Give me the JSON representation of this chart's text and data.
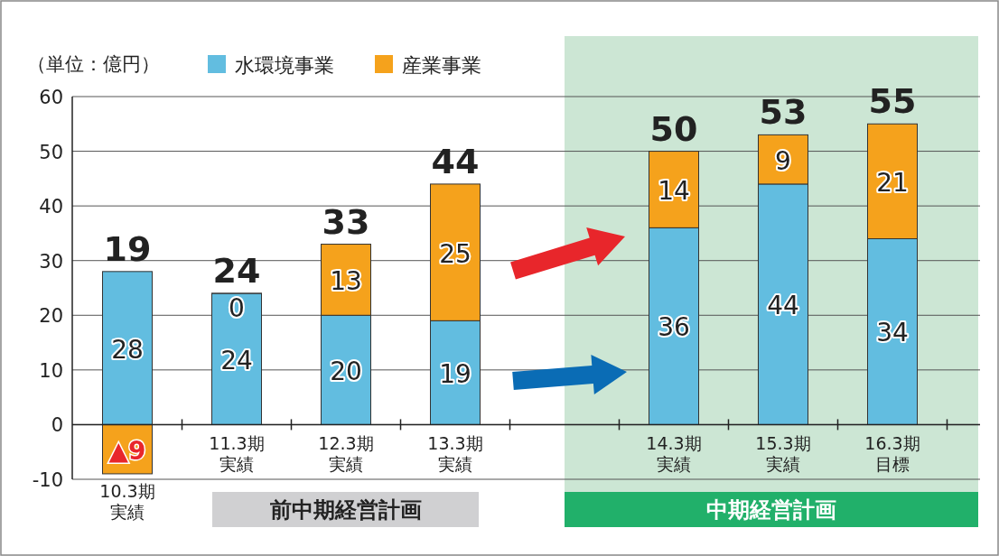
{
  "chart_data": {
    "type": "bar",
    "stacked": true,
    "ylabel": "（単位：億円）",
    "categories": [
      "10.3期実績",
      "11.3期実績",
      "12.3期実績",
      "13.3期実績",
      null,
      "14.3期実績",
      "15.3期実績",
      "16.3期目標"
    ],
    "series": [
      {
        "name": "水環境事業",
        "color": "#62bde0",
        "values": [
          28,
          24,
          20,
          19,
          null,
          36,
          44,
          34
        ],
        "value_labels": [
          "28",
          "24",
          "20",
          "19",
          null,
          "36",
          "44",
          "34"
        ]
      },
      {
        "name": "産業事業",
        "color": "#f5a21c",
        "values": [
          -9,
          0,
          13,
          25,
          null,
          14,
          9,
          21
        ],
        "value_labels": [
          null,
          "0",
          "13",
          "25",
          null,
          "14",
          "9",
          "21"
        ]
      }
    ],
    "totals": [
      "19",
      "24",
      "33",
      "44",
      null,
      "50",
      "53",
      "55"
    ],
    "ylim": [
      -10,
      60
    ],
    "yticks": [
      -10,
      0,
      10,
      20,
      30,
      40,
      50,
      60
    ],
    "grid": "y",
    "legend": "top left",
    "annotations": [
      "前中期経営計画",
      "中期経営計画",
      {
        "text": "▲9",
        "x": "10.3期実績",
        "y": -9
      }
    ]
  }
}
